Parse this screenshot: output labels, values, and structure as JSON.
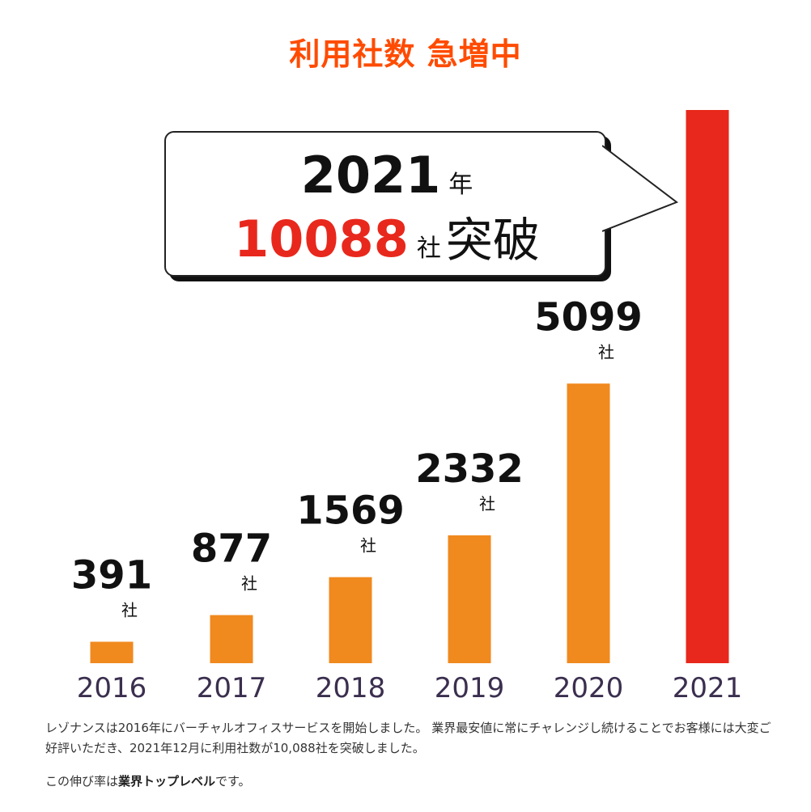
{
  "title": "利用社数 急増中",
  "chart_data": {
    "type": "bar",
    "categories": [
      "2016",
      "2017",
      "2018",
      "2019",
      "2020",
      "2021"
    ],
    "values": [
      391,
      877,
      1569,
      2332,
      5099,
      10088
    ],
    "value_labels": [
      "391",
      "877",
      "1569",
      "2332",
      "5099",
      ""
    ],
    "unit": "社",
    "bar_colors": [
      "#f0891e",
      "#f0891e",
      "#f0891e",
      "#f0891e",
      "#f0891e",
      "#e8281c"
    ],
    "ylim": [
      0,
      10088
    ]
  },
  "callout": {
    "year": "2021",
    "year_unit": "年",
    "count": "10088",
    "count_unit": "社",
    "suffix": "突破"
  },
  "description": "レゾナンスは2016年にバーチャルオフィスサービスを開始しました。 業界最安値に常にチャレンジし続けることでお客様には大変ご好評いただき、2021年12月に利用社数が10,088社を突破しました。",
  "note": {
    "prefix": "この伸び率は",
    "bold": "業界トップレベル",
    "suffix": "です。"
  },
  "colors": {
    "title": "#ff4b00",
    "bar": "#f0891e",
    "highlight": "#e8281c",
    "axis_label": "#3b2f4f"
  }
}
